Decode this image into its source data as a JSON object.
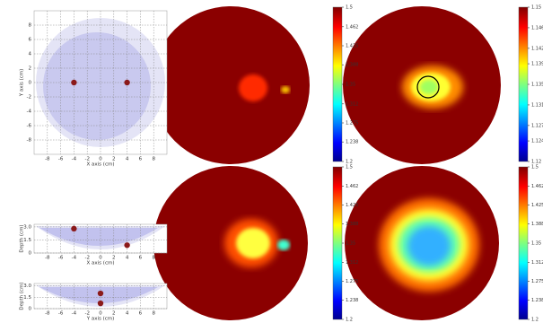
{
  "chart_data": [
    {
      "type": "scatter",
      "x_label": "X axis (cm)",
      "y_label": "Y axis (cm)",
      "x": [
        -4,
        4
      ],
      "values": [
        0,
        0
      ],
      "color": "#8b1a1a",
      "xlim": [
        -10,
        10
      ],
      "xticks": [
        -8,
        -6,
        -4,
        -2,
        0,
        2,
        4,
        6,
        8
      ],
      "ylim": [
        -10,
        10
      ],
      "yticks": [
        -8,
        -6,
        -4,
        -2,
        0,
        2,
        4,
        6,
        8
      ],
      "grid": true
    },
    {
      "type": "scatter",
      "x_label": "X axis (cm)",
      "y_label": "Depth (cm)",
      "x": [
        -4,
        4
      ],
      "values": [
        2.8,
        0.9
      ],
      "color": "#8b1a1a",
      "xlim": [
        -10,
        10
      ],
      "xticks": [
        -8,
        -6,
        -4,
        -2,
        0,
        2,
        4,
        6,
        8
      ],
      "ylim": [
        0,
        3.3
      ],
      "yticks": [
        0,
        1.5,
        {
          "value": 3,
          "label": "3.0"
        }
      ],
      "grid": true
    },
    {
      "type": "scatter",
      "x_label": "Y axis (cm)",
      "y_label": "Depth (cm)",
      "x": [
        0,
        0
      ],
      "values": [
        2.0,
        0.7
      ],
      "color": "#8b1a1a",
      "xlim": [
        -10,
        10
      ],
      "xticks": [
        -8,
        -6,
        -4,
        -2,
        0,
        2,
        4,
        6,
        8
      ],
      "ylim": [
        0,
        3.3
      ],
      "yticks": [
        0,
        1.5,
        {
          "value": 3,
          "label": "3.0"
        }
      ],
      "grid": true
    },
    {
      "type": "colorbar",
      "ylim": [
        1.2,
        1.5
      ],
      "yticks": [
        1.2,
        1.238,
        1.275,
        1.312,
        1.35,
        1.388,
        1.425,
        1.462,
        1.5
      ]
    },
    {
      "type": "colorbar",
      "ylim": [
        1.12,
        1.15
      ],
      "yticks": [
        1.12,
        1.124,
        1.127,
        1.131,
        1.135,
        1.139,
        1.142,
        1.146,
        1.15
      ]
    },
    {
      "type": "colorbar",
      "ylim": [
        1.2,
        1.5
      ],
      "yticks": [
        1.2,
        1.238,
        1.275,
        1.312,
        1.35,
        1.388,
        1.425,
        1.462,
        1.5
      ]
    },
    {
      "type": "colorbar",
      "ylim": [
        1.2,
        1.5
      ],
      "yticks": [
        1.2,
        1.238,
        1.275,
        1.312,
        1.35,
        1.388,
        1.425,
        1.462,
        1.5
      ]
    }
  ]
}
